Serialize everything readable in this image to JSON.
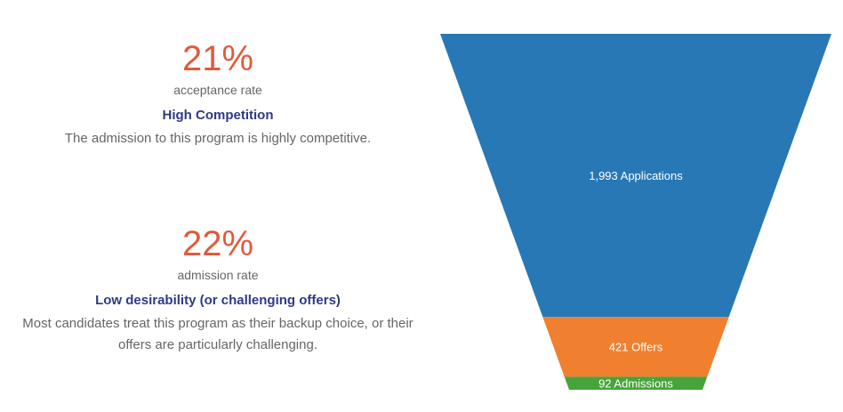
{
  "stats": [
    {
      "value": "21%",
      "label": "acceptance rate",
      "heading": "High Competition",
      "description": "The admission to this program is highly competitive."
    },
    {
      "value": "22%",
      "label": "admission rate",
      "heading": "Low desirability (or challenging offers)",
      "description": "Most candidates treat this program as their backup choice, or their offers are particularly challenging."
    }
  ],
  "colors": {
    "accent": "#e05a3c",
    "heading": "#2f3a82",
    "text": "#666666"
  },
  "chart_data": {
    "type": "funnel",
    "stages": [
      {
        "label": "1,993 Applications",
        "value": 1993,
        "color": "#2878b5"
      },
      {
        "label": "421 Offers",
        "value": 421,
        "color": "#f07f2f"
      },
      {
        "label": "92 Admissions",
        "value": 92,
        "color": "#46a43a"
      }
    ]
  }
}
